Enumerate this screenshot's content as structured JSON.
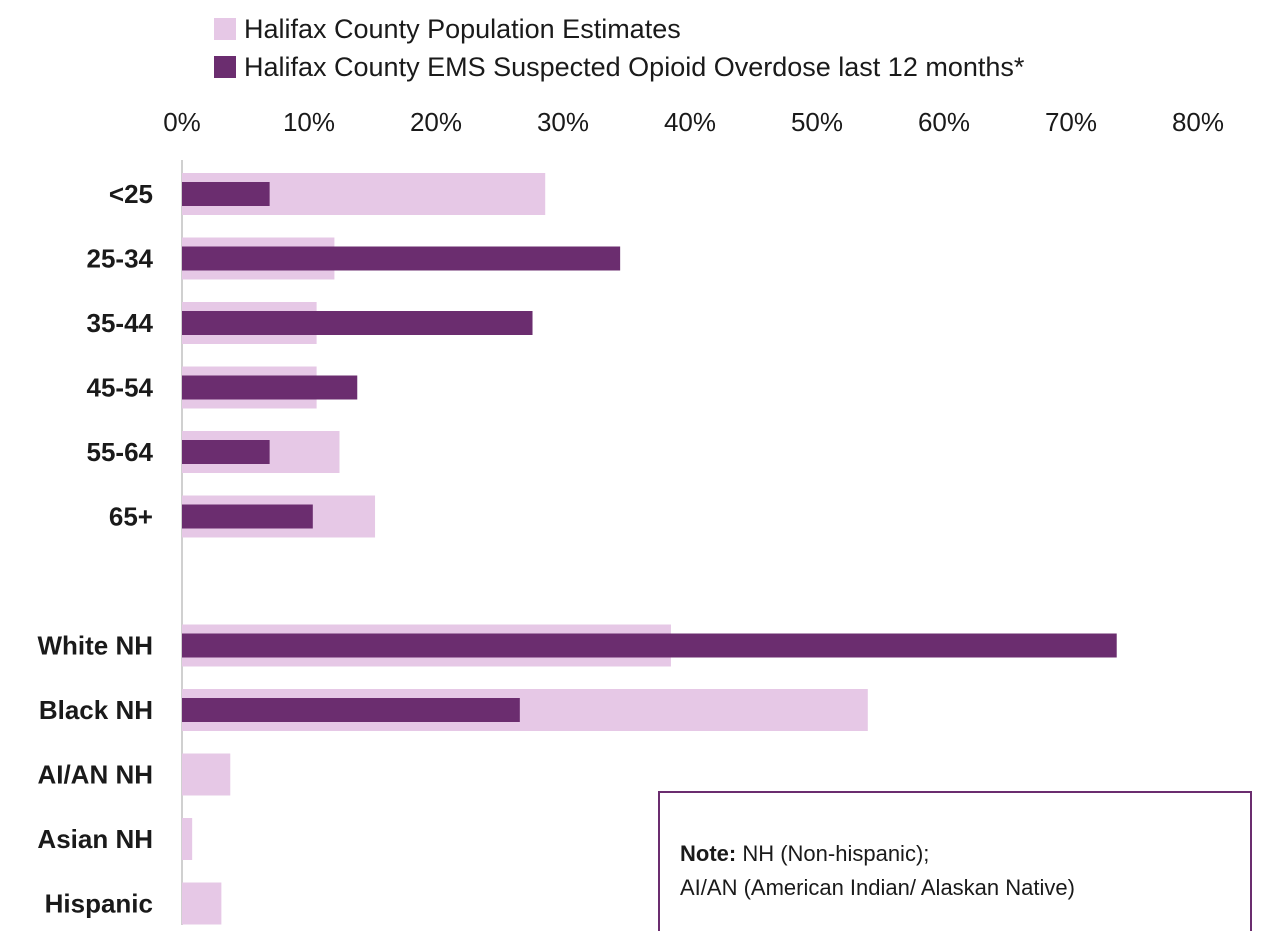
{
  "chart_data": {
    "type": "bar",
    "orientation": "horizontal",
    "categories": [
      "<25",
      "25-34",
      "35-44",
      "45-54",
      "55-64",
      "65+",
      "",
      "White NH",
      "Black NH",
      "AI/AN NH",
      "Asian NH",
      "Hispanic"
    ],
    "series": [
      {
        "name": "Halifax County Population Estimates",
        "color": "#e6c8e6",
        "values": [
          28.6,
          12.0,
          10.6,
          10.6,
          12.4,
          15.2,
          null,
          38.5,
          54.0,
          3.8,
          0.8,
          3.1
        ]
      },
      {
        "name": "Halifax County EMS Suspected Opioid Overdose last 12 months*",
        "color": "#6b2d6f",
        "values": [
          6.9,
          34.5,
          27.6,
          13.8,
          6.9,
          10.3,
          null,
          73.6,
          26.6,
          null,
          null,
          null
        ]
      }
    ],
    "x_ticks": [
      "0%",
      "10%",
      "20%",
      "30%",
      "40%",
      "50%",
      "60%",
      "70%",
      "80%"
    ],
    "xlim": [
      0,
      80
    ],
    "grid": false,
    "legend_position": "top-left"
  },
  "note": {
    "label": "Note:",
    "line1": " NH (Non-hispanic);",
    "line2": "AI/AN (American Indian/ Alaskan Native)"
  }
}
